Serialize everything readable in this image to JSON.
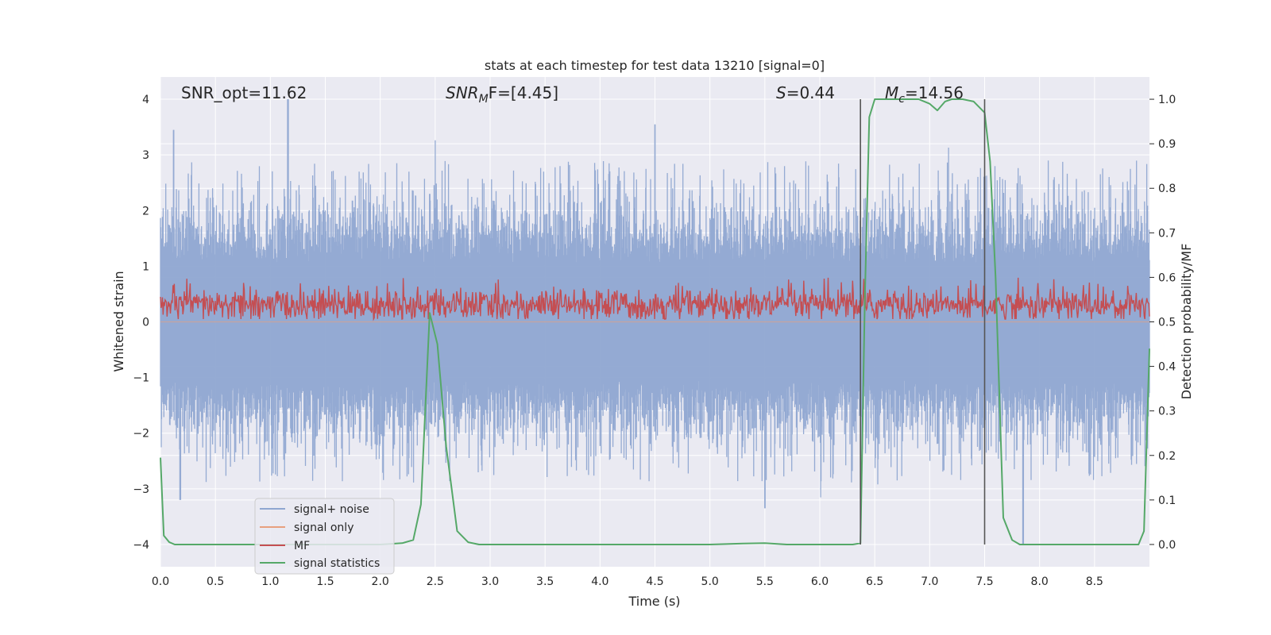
{
  "chart_data": {
    "type": "line",
    "title": "stats at each timestep for test data 13210 [signal=0]",
    "xlabel": "Time (s)",
    "ylabel": "Whitened strain",
    "y2label": "Detection probability/MF",
    "xlim": [
      0.0,
      9.0
    ],
    "ylim": [
      -4.4,
      4.4
    ],
    "y2lim": [
      -0.05,
      1.05
    ],
    "xticks": [
      0.0,
      0.5,
      1.0,
      1.5,
      2.0,
      2.5,
      3.0,
      3.5,
      4.0,
      4.5,
      5.0,
      5.5,
      6.0,
      6.5,
      7.0,
      7.5,
      8.0,
      8.5
    ],
    "xtick_labels": [
      "0.0",
      "0.5",
      "1.0",
      "1.5",
      "2.0",
      "2.5",
      "3.0",
      "3.5",
      "4.0",
      "4.5",
      "5.0",
      "5.5",
      "6.0",
      "6.5",
      "7.0",
      "7.5",
      "8.0",
      "8.5"
    ],
    "yticks": [
      4,
      3,
      2,
      1,
      0,
      -1,
      -2,
      -3,
      -4
    ],
    "ytick_labels": [
      "4",
      "3",
      "2",
      "1",
      "0",
      "−1",
      "−2",
      "−3",
      "−4"
    ],
    "y2ticks": [
      1.0,
      0.9,
      0.8,
      0.7,
      0.6,
      0.5,
      0.4,
      0.3,
      0.2,
      0.1,
      0.0
    ],
    "y2tick_labels": [
      "1.0",
      "0.9",
      "0.8",
      "0.7",
      "0.6",
      "0.5",
      "0.4",
      "0.3",
      "0.2",
      "0.1",
      "0.0"
    ],
    "grid": true,
    "legend_position": "lower-left",
    "annotations": {
      "snr_opt": "SNR_opt=11.62",
      "snr_mf_base": "SNR",
      "snr_mf_sub": "M",
      "snr_mf_rest": "F=[4.45]",
      "s_sym": "S",
      "s_rest": "=0.44",
      "mc_sym": "M",
      "mc_sub": "c",
      "mc_rest": "=14.56"
    },
    "vlines": [
      6.37,
      7.5
    ],
    "series": [
      {
        "name": "signal+ noise",
        "color": "#8fa6d1",
        "axis": "left",
        "kind": "noise",
        "amplitude_typical": 1.6,
        "extremes": [
          [
            0.12,
            3.45
          ],
          [
            1.16,
            4.0
          ],
          [
            0.18,
            -3.2
          ],
          [
            4.5,
            3.55
          ],
          [
            5.5,
            -3.35
          ],
          [
            7.85,
            -4.0
          ],
          [
            2.45,
            2.3
          ]
        ]
      },
      {
        "name": "signal only",
        "color": "#e8a07e",
        "axis": "left",
        "x": [
          0.0,
          9.0
        ],
        "y": [
          0.0,
          0.0
        ]
      },
      {
        "name": "MF",
        "color": "#c44e52",
        "axis": "left",
        "kind": "noise",
        "center": 0.3,
        "amplitude_typical": 0.25,
        "range": [
          0.05,
          0.85
        ]
      },
      {
        "name": "signal statistics",
        "color": "#55a868",
        "axis": "right",
        "x": [
          0.0,
          0.03,
          0.08,
          0.13,
          0.2,
          0.3,
          0.5,
          1.0,
          1.5,
          2.0,
          2.2,
          2.3,
          2.37,
          2.45,
          2.52,
          2.6,
          2.7,
          2.8,
          2.9,
          3.0,
          4.0,
          5.0,
          5.3,
          5.5,
          5.7,
          6.0,
          6.3,
          6.37,
          6.41,
          6.45,
          6.5,
          6.9,
          7.0,
          7.07,
          7.14,
          7.2,
          7.3,
          7.4,
          7.5,
          7.55,
          7.6,
          7.67,
          7.75,
          7.82,
          7.9,
          8.0,
          8.9,
          8.95,
          9.0
        ],
        "y": [
          0.195,
          0.02,
          0.005,
          0.0,
          0.0,
          0.0,
          0.0,
          0.0,
          0.0,
          0.0,
          0.003,
          0.01,
          0.09,
          0.52,
          0.45,
          0.22,
          0.03,
          0.005,
          0.0,
          0.0,
          0.0,
          0.0,
          0.002,
          0.003,
          0.0,
          0.0,
          0.0,
          0.003,
          0.55,
          0.96,
          1.0,
          1.0,
          0.99,
          0.975,
          0.995,
          1.0,
          1.0,
          0.995,
          0.97,
          0.86,
          0.6,
          0.06,
          0.01,
          0.0,
          0.0,
          0.0,
          0.0,
          0.03,
          0.44
        ]
      }
    ]
  }
}
